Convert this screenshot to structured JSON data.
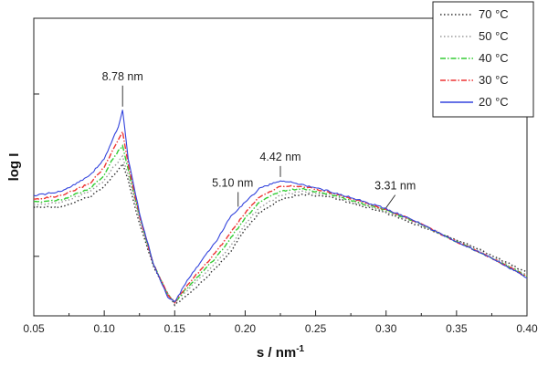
{
  "chart_data": {
    "type": "line",
    "xlabel": "s / nm",
    "xlabel_sup": "-1",
    "ylabel": "log I",
    "xlim": [
      0.05,
      0.4
    ],
    "ylim": [
      0.45,
      1.0
    ],
    "y_scale_note": "arbitrary units, log scale, no numeric tick labels",
    "x_ticks": [
      "0.05",
      "0.10",
      "0.15",
      "0.20",
      "0.25",
      "0.30",
      "0.35",
      "0.40"
    ],
    "x_tick_values": [
      0.05,
      0.1,
      0.15,
      0.2,
      0.25,
      0.3,
      0.35,
      0.4
    ],
    "y_major_ticks": [
      0.56,
      0.86
    ],
    "grid": false,
    "legend_position": "top-right",
    "x": [
      0.05,
      0.07,
      0.09,
      0.1,
      0.105,
      0.11,
      0.113,
      0.117,
      0.125,
      0.135,
      0.145,
      0.15,
      0.16,
      0.18,
      0.19,
      0.2,
      0.21,
      0.225,
      0.24,
      0.26,
      0.28,
      0.3,
      0.32,
      0.34,
      0.36,
      0.38,
      0.4
    ],
    "series": [
      {
        "name": "70 °C",
        "color": "#303030",
        "dash": "dot",
        "values": [
          0.65,
          0.652,
          0.67,
          0.69,
          0.705,
          0.72,
          0.73,
          0.7,
          0.62,
          0.54,
          0.49,
          0.47,
          0.49,
          0.54,
          0.57,
          0.61,
          0.64,
          0.665,
          0.675,
          0.67,
          0.655,
          0.64,
          0.62,
          0.6,
          0.58,
          0.556,
          0.53
        ]
      },
      {
        "name": "50 °C",
        "color": "#999999",
        "dash": "dot",
        "values": [
          0.655,
          0.66,
          0.68,
          0.7,
          0.72,
          0.735,
          0.745,
          0.71,
          0.63,
          0.545,
          0.49,
          0.475,
          0.5,
          0.55,
          0.58,
          0.62,
          0.65,
          0.672,
          0.68,
          0.672,
          0.658,
          0.643,
          0.623,
          0.6,
          0.578,
          0.553,
          0.525
        ]
      },
      {
        "name": "40 °C",
        "color": "#33cc33",
        "dash": "dashdot",
        "values": [
          0.66,
          0.665,
          0.685,
          0.71,
          0.735,
          0.755,
          0.765,
          0.72,
          0.635,
          0.545,
          0.49,
          0.475,
          0.505,
          0.56,
          0.595,
          0.63,
          0.66,
          0.68,
          0.685,
          0.675,
          0.66,
          0.645,
          0.625,
          0.6,
          0.575,
          0.55,
          0.523
        ]
      },
      {
        "name": "30 °C",
        "color": "#ee3333",
        "dash": "dashdot",
        "values": [
          0.665,
          0.672,
          0.695,
          0.725,
          0.75,
          0.775,
          0.79,
          0.73,
          0.635,
          0.545,
          0.49,
          0.475,
          0.51,
          0.57,
          0.605,
          0.64,
          0.67,
          0.69,
          0.69,
          0.678,
          0.663,
          0.646,
          0.626,
          0.6,
          0.575,
          0.55,
          0.522
        ]
      },
      {
        "name": "20 °C",
        "color": "#3344dd",
        "dash": "solid",
        "values": [
          0.672,
          0.68,
          0.71,
          0.74,
          0.77,
          0.8,
          0.83,
          0.74,
          0.64,
          0.545,
          0.485,
          0.475,
          0.52,
          0.59,
          0.635,
          0.66,
          0.685,
          0.7,
          0.693,
          0.68,
          0.665,
          0.648,
          0.626,
          0.6,
          0.575,
          0.55,
          0.52
        ]
      }
    ],
    "annotations": [
      {
        "text": "8.78 nm",
        "x": 0.113,
        "y": 0.83
      },
      {
        "text": "5.10 nm",
        "x": 0.195,
        "y": 0.645
      },
      {
        "text": "4.42 nm",
        "x": 0.225,
        "y": 0.7
      },
      {
        "text": "3.31 nm",
        "x": 0.3,
        "y": 0.643
      }
    ]
  }
}
